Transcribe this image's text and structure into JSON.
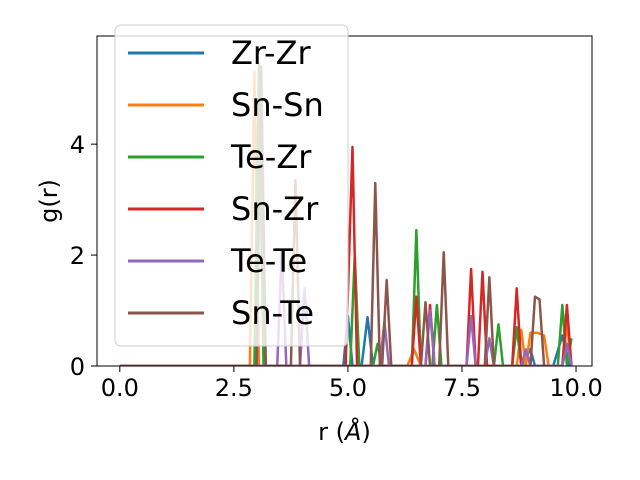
{
  "chart_data": {
    "type": "line",
    "xlabel_main": "r (",
    "xlabel_unit": "Å",
    "xlabel_close": ")",
    "ylabel": "g(r)",
    "xlim": [
      -0.5,
      10.35
    ],
    "ylim": [
      0,
      5.95
    ],
    "x_ticks": [
      0,
      2.5,
      5,
      7.5,
      10
    ],
    "x_tick_labels": [
      "0.0",
      "2.5",
      "5.0",
      "7.5",
      "10.0"
    ],
    "y_ticks": [
      0,
      2,
      4
    ],
    "y_tick_labels": [
      "0",
      "2",
      "4"
    ],
    "grid": false,
    "legend_position": "upper left",
    "series": [
      {
        "name": "Zr-Zr",
        "color": "#1f77b4",
        "points": [
          [
            0,
            0
          ],
          [
            2.7,
            0
          ],
          [
            2.85,
            0
          ],
          [
            2.95,
            0
          ],
          [
            3.05,
            0
          ],
          [
            4.9,
            0
          ],
          [
            5.0,
            0.9
          ],
          [
            5.1,
            0
          ],
          [
            5.3,
            0
          ],
          [
            5.43,
            0.88
          ],
          [
            5.55,
            0
          ],
          [
            8.8,
            0
          ],
          [
            9.0,
            0.3
          ],
          [
            9.1,
            0
          ],
          [
            9.5,
            0
          ],
          [
            9.7,
            0.55
          ],
          [
            9.85,
            0
          ]
        ]
      },
      {
        "name": "Sn-Sn",
        "color": "#ff7f0e",
        "points": [
          [
            0,
            0
          ],
          [
            2.85,
            0
          ],
          [
            2.95,
            5.3
          ],
          [
            3.05,
            0
          ],
          [
            6.3,
            0
          ],
          [
            6.45,
            0.3
          ],
          [
            6.6,
            0
          ],
          [
            8.7,
            0
          ],
          [
            8.8,
            0.65
          ],
          [
            8.9,
            0
          ],
          [
            9.0,
            0.6
          ],
          [
            9.15,
            0.6
          ],
          [
            9.3,
            0.55
          ],
          [
            9.4,
            0
          ],
          [
            9.7,
            0
          ],
          [
            9.8,
            0.75
          ],
          [
            9.9,
            0
          ]
        ]
      },
      {
        "name": "Te-Zr",
        "color": "#2ca02c",
        "points": [
          [
            0,
            0
          ],
          [
            2.95,
            0
          ],
          [
            3.05,
            5.45
          ],
          [
            3.15,
            0
          ],
          [
            5.05,
            0
          ],
          [
            5.15,
            2.0
          ],
          [
            5.25,
            0
          ],
          [
            5.55,
            0
          ],
          [
            5.65,
            0.4
          ],
          [
            5.75,
            0
          ],
          [
            6.4,
            0
          ],
          [
            6.5,
            2.45
          ],
          [
            6.6,
            0
          ],
          [
            6.85,
            0
          ],
          [
            6.95,
            1.1
          ],
          [
            7.05,
            0
          ],
          [
            8.2,
            0
          ],
          [
            8.3,
            0.75
          ],
          [
            8.4,
            0
          ],
          [
            8.6,
            0
          ],
          [
            8.7,
            0.7
          ],
          [
            8.8,
            0
          ],
          [
            9.6,
            0
          ],
          [
            9.7,
            1.1
          ],
          [
            9.8,
            0
          ],
          [
            9.9,
            0.5
          ]
        ]
      },
      {
        "name": "Sn-Zr",
        "color": "#d62728",
        "points": [
          [
            0,
            0
          ],
          [
            4.95,
            0
          ],
          [
            5.1,
            3.95
          ],
          [
            5.2,
            0
          ],
          [
            6.4,
            0
          ],
          [
            6.5,
            1.25
          ],
          [
            6.6,
            0
          ],
          [
            6.7,
            0
          ],
          [
            6.8,
            1.1
          ],
          [
            6.9,
            0
          ],
          [
            7.6,
            0
          ],
          [
            7.7,
            1.75
          ],
          [
            7.8,
            0
          ],
          [
            7.85,
            0
          ],
          [
            7.95,
            1.7
          ],
          [
            8.05,
            0
          ],
          [
            8.6,
            0
          ],
          [
            8.7,
            1.4
          ],
          [
            8.8,
            0
          ],
          [
            9.7,
            0
          ],
          [
            9.8,
            1.1
          ],
          [
            9.9,
            0
          ]
        ]
      },
      {
        "name": "Te-Te",
        "color": "#9467bd",
        "points": [
          [
            0,
            0
          ],
          [
            3.45,
            0
          ],
          [
            3.55,
            2.1
          ],
          [
            3.65,
            0
          ],
          [
            3.95,
            0
          ],
          [
            4.05,
            1.4
          ],
          [
            4.15,
            0
          ],
          [
            5.7,
            0
          ],
          [
            5.8,
            0.8
          ],
          [
            5.9,
            0
          ],
          [
            6.7,
            0
          ],
          [
            6.8,
            1.0
          ],
          [
            6.9,
            0
          ],
          [
            7.6,
            0
          ],
          [
            7.7,
            0.9
          ],
          [
            7.8,
            0
          ],
          [
            8.0,
            0
          ],
          [
            8.1,
            0.5
          ],
          [
            8.2,
            0
          ],
          [
            8.8,
            0
          ],
          [
            8.9,
            0.3
          ],
          [
            9.0,
            0
          ],
          [
            9.7,
            0
          ],
          [
            9.8,
            0.4
          ],
          [
            9.9,
            0
          ]
        ]
      },
      {
        "name": "Sn-Te",
        "color": "#8c564b",
        "points": [
          [
            0,
            0
          ],
          [
            3.0,
            0
          ],
          [
            3.1,
            5.4
          ],
          [
            3.2,
            0
          ],
          [
            3.75,
            0
          ],
          [
            3.85,
            3.35
          ],
          [
            3.95,
            0
          ],
          [
            5.5,
            0
          ],
          [
            5.6,
            3.3
          ],
          [
            5.7,
            0
          ],
          [
            5.75,
            0
          ],
          [
            5.85,
            1.55
          ],
          [
            5.95,
            0
          ],
          [
            6.6,
            0
          ],
          [
            6.7,
            1.15
          ],
          [
            6.8,
            0
          ],
          [
            7.0,
            0
          ],
          [
            7.1,
            2.05
          ],
          [
            7.2,
            0
          ],
          [
            8.0,
            0
          ],
          [
            8.1,
            1.6
          ],
          [
            8.2,
            0
          ],
          [
            9.0,
            0
          ],
          [
            9.1,
            1.25
          ],
          [
            9.2,
            1.2
          ],
          [
            9.3,
            0
          ]
        ]
      }
    ]
  }
}
